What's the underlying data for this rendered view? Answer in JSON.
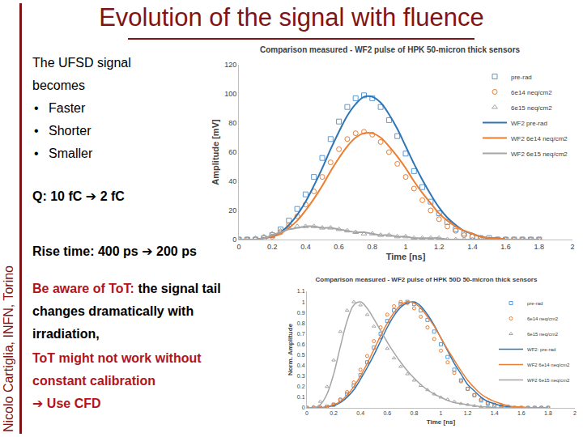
{
  "slide": {
    "title": "Evolution of the signal with fluence",
    "author": "Nicolo Cartiglia, INFN, Torino",
    "intro": "The UFSD signal becomes",
    "bullets": [
      "Faster",
      "Shorter",
      "Smaller"
    ],
    "charge": "Q: 10 fC ➔ 2 fC",
    "rise_time": "Rise time: 400 ps ➔ 200 ps",
    "warning": {
      "highlight": "Be aware of ToT:",
      "text": "the signal tail changes dramatically with irradiation,"
    },
    "tot_note": "ToT might not work without constant calibration",
    "conclusion": "➔ Use CFD"
  },
  "chart_data": [
    {
      "type": "line",
      "title": "Comparison measured - WF2 pulse of HPK 50-micron thick sensors",
      "x_label": "Time [ns]",
      "y_label": "Amplitude [mV]",
      "x": [
        0,
        0.05,
        0.1,
        0.15,
        0.2,
        0.25,
        0.3,
        0.35,
        0.4,
        0.45,
        0.5,
        0.55,
        0.6,
        0.65,
        0.7,
        0.75,
        0.8,
        0.85,
        0.9,
        0.95,
        1,
        1.05,
        1.1,
        1.15,
        1.2,
        1.25,
        1.3,
        1.35,
        1.4,
        1.45,
        1.5,
        1.55,
        1.6,
        1.65,
        1.7,
        1.75,
        1.8
      ],
      "xlim": [
        0,
        2
      ],
      "xticks": [
        0,
        0.2,
        0.4,
        0.6,
        0.8,
        1,
        1.2,
        1.4,
        1.6,
        1.8,
        2
      ],
      "ylim": [
        0,
        120
      ],
      "yticks": [
        0,
        20,
        40,
        60,
        80,
        100,
        120
      ],
      "grid": false,
      "legend": "top right",
      "series": [
        {
          "name": "pre-rad",
          "type": "scatter",
          "marker": "square-open",
          "color": "#5b9bd5",
          "values": [
            0,
            0,
            0,
            1,
            3,
            7,
            13,
            21,
            31,
            43,
            56,
            69,
            81,
            91,
            97,
            99,
            97,
            91,
            82,
            71,
            59,
            47,
            36,
            26,
            18,
            12,
            7,
            4,
            2,
            1,
            1,
            0,
            0,
            0,
            0,
            0,
            0
          ]
        },
        {
          "name": "6e14 neq/cm2",
          "type": "scatter",
          "marker": "circle-open",
          "color": "#ed7d31",
          "values": [
            0,
            0,
            0,
            1,
            2,
            5,
            10,
            16,
            24,
            33,
            43,
            53,
            62,
            69,
            73,
            74,
            72,
            67,
            60,
            52,
            43,
            35,
            27,
            20,
            14,
            9,
            6,
            3,
            2,
            1,
            0,
            0,
            0,
            0,
            0,
            0,
            0
          ]
        },
        {
          "name": "6e15 neq/cm2",
          "type": "scatter",
          "marker": "triangle-up-open",
          "color": "#a5a5a5",
          "values": [
            0,
            0,
            1,
            2,
            4,
            6,
            8,
            9,
            9,
            9,
            8,
            8,
            7,
            6,
            5,
            4,
            4,
            3,
            3,
            2,
            2,
            1,
            1,
            1,
            1,
            0,
            0,
            0,
            0,
            0,
            0,
            0,
            0,
            0,
            0,
            0,
            0
          ]
        },
        {
          "name": "WF2 pre-rad",
          "type": "line",
          "line_style": "solid",
          "color": "#2e75b6",
          "values": [
            0,
            0,
            0,
            1,
            2,
            5,
            10,
            17,
            26,
            37,
            49,
            62,
            74,
            85,
            93,
            98,
            98,
            94,
            86,
            76,
            64,
            52,
            41,
            31,
            22,
            15,
            10,
            6,
            4,
            2,
            1,
            1,
            0,
            0,
            0,
            0,
            0
          ]
        },
        {
          "name": "WF2 6e14 neq/cm2",
          "type": "line",
          "line_style": "solid",
          "color": "#ed7d31",
          "values": [
            0,
            0,
            0,
            1,
            2,
            4,
            8,
            13,
            20,
            28,
            37,
            47,
            56,
            64,
            70,
            73,
            73,
            70,
            64,
            57,
            49,
            40,
            32,
            25,
            18,
            13,
            9,
            6,
            4,
            2,
            1,
            1,
            0,
            0,
            0,
            0,
            0
          ]
        },
        {
          "name": "WF2 6e15 neq/cm2",
          "type": "line",
          "line_style": "solid",
          "color": "#a5a5a5",
          "values": [
            0,
            0,
            0,
            1,
            3,
            5,
            7,
            8,
            9,
            9,
            8,
            8,
            7,
            6,
            5,
            5,
            4,
            3,
            3,
            2,
            2,
            1,
            1,
            1,
            1,
            0,
            0,
            0,
            0,
            0,
            0,
            0,
            0,
            0,
            0,
            0,
            0
          ]
        }
      ]
    },
    {
      "type": "line",
      "title": "Comparison measured - WF2 pulse of HPK 50D 50-micron thick sensors",
      "x_label": "Time [ns]",
      "y_label": "Norm. Amplitude",
      "x": [
        0,
        0.05,
        0.1,
        0.15,
        0.2,
        0.25,
        0.3,
        0.35,
        0.4,
        0.45,
        0.5,
        0.55,
        0.6,
        0.65,
        0.7,
        0.75,
        0.8,
        0.85,
        0.9,
        0.95,
        1,
        1.05,
        1.1,
        1.15,
        1.2,
        1.25,
        1.3,
        1.35,
        1.4,
        1.45,
        1.5,
        1.55,
        1.6,
        1.65,
        1.7,
        1.75,
        1.8
      ],
      "xlim": [
        0,
        2
      ],
      "xticks": [
        0,
        0.2,
        0.4,
        0.6,
        0.8,
        1,
        1.2,
        1.4,
        1.6,
        1.8,
        2
      ],
      "ylim": [
        0,
        1.1
      ],
      "yticks": [
        0,
        0.1,
        0.2,
        0.3,
        0.4,
        0.5,
        0.6,
        0.7,
        0.8,
        0.9,
        1,
        1.1
      ],
      "grid": false,
      "legend": "top right",
      "series": [
        {
          "name": "pre-rad",
          "type": "scatter",
          "marker": "square-open",
          "color": "#5b9bd5",
          "values": [
            0,
            0,
            0,
            0.01,
            0.03,
            0.07,
            0.13,
            0.21,
            0.31,
            0.43,
            0.57,
            0.7,
            0.82,
            0.92,
            0.98,
            1,
            0.98,
            0.92,
            0.83,
            0.72,
            0.6,
            0.48,
            0.36,
            0.26,
            0.18,
            0.12,
            0.07,
            0.04,
            0.02,
            0.01,
            0.01,
            0,
            0,
            0,
            0,
            0,
            0
          ]
        },
        {
          "name": "6e14 neq/cm2",
          "type": "scatter",
          "marker": "circle-open",
          "color": "#ed7d31",
          "values": [
            0,
            0,
            0,
            0.01,
            0.03,
            0.08,
            0.15,
            0.24,
            0.36,
            0.49,
            0.63,
            0.76,
            0.88,
            0.96,
            1,
            0.99,
            0.94,
            0.86,
            0.76,
            0.65,
            0.54,
            0.43,
            0.33,
            0.25,
            0.18,
            0.12,
            0.08,
            0.05,
            0.03,
            0.02,
            0.01,
            0,
            0,
            0,
            0,
            0,
            0
          ]
        },
        {
          "name": "6e15 neq/cm2",
          "type": "scatter",
          "marker": "triangle-up-open",
          "color": "#a5a5a5",
          "values": [
            0,
            0.01,
            0.06,
            0.2,
            0.45,
            0.72,
            0.92,
            1,
            0.97,
            0.88,
            0.77,
            0.66,
            0.56,
            0.47,
            0.39,
            0.32,
            0.26,
            0.21,
            0.17,
            0.13,
            0.1,
            0.08,
            0.06,
            0.04,
            0.03,
            0.02,
            0.01,
            0.01,
            0,
            0,
            0,
            0,
            0,
            0,
            0,
            0,
            0
          ]
        },
        {
          "name": "WF2: pre-rad",
          "type": "line",
          "line_style": "solid",
          "color": "#2e75b6",
          "values": [
            0,
            0,
            0,
            0.01,
            0.02,
            0.05,
            0.1,
            0.17,
            0.27,
            0.38,
            0.5,
            0.63,
            0.76,
            0.87,
            0.95,
            0.99,
            1,
            0.96,
            0.88,
            0.78,
            0.66,
            0.54,
            0.42,
            0.32,
            0.22,
            0.16,
            0.1,
            0.06,
            0.04,
            0.02,
            0.01,
            0.01,
            0,
            0,
            0,
            0,
            0
          ]
        },
        {
          "name": "WF2 6e14 neq/cm2",
          "type": "line",
          "line_style": "solid",
          "color": "#ed7d31",
          "values": [
            0,
            0,
            0,
            0.01,
            0.03,
            0.06,
            0.12,
            0.2,
            0.3,
            0.42,
            0.55,
            0.68,
            0.8,
            0.9,
            0.97,
            1,
            0.99,
            0.94,
            0.86,
            0.77,
            0.66,
            0.55,
            0.45,
            0.35,
            0.26,
            0.19,
            0.13,
            0.09,
            0.06,
            0.04,
            0.02,
            0.01,
            0.01,
            0,
            0,
            0,
            0
          ]
        },
        {
          "name": "WF2 6e15 neq/cm2",
          "type": "line",
          "line_style": "solid",
          "color": "#a5a5a5",
          "values": [
            0,
            0,
            0.03,
            0.13,
            0.32,
            0.58,
            0.82,
            0.97,
            1,
            0.94,
            0.84,
            0.73,
            0.62,
            0.52,
            0.43,
            0.35,
            0.28,
            0.22,
            0.17,
            0.13,
            0.1,
            0.07,
            0.05,
            0.04,
            0.03,
            0.02,
            0.01,
            0.01,
            0,
            0,
            0,
            0,
            0,
            0,
            0,
            0,
            0
          ]
        }
      ]
    }
  ]
}
